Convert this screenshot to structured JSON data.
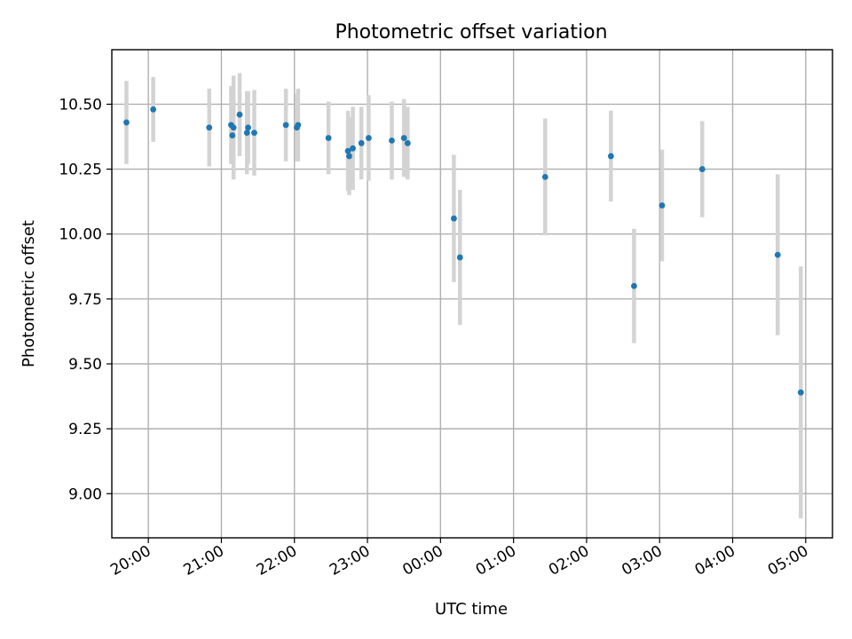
{
  "chart_data": {
    "type": "scatter",
    "title": "Photometric offset variation",
    "xlabel": "UTC time",
    "ylabel": "Photometric offset",
    "grid": true,
    "x_axis": {
      "kind": "time",
      "tick_labels": [
        "20:00",
        "21:00",
        "22:00",
        "23:00",
        "00:00",
        "01:00",
        "02:00",
        "03:00",
        "04:00",
        "05:00"
      ],
      "tick_times": [
        "20:00",
        "21:00",
        "22:00",
        "23:00",
        "00:00",
        "01:00",
        "02:00",
        "03:00",
        "04:00",
        "05:00"
      ],
      "range": [
        "19:30",
        "05:22"
      ],
      "tick_label_rotation": "30 degrees"
    },
    "y_axis": {
      "range": [
        8.83,
        10.71
      ],
      "ticks": [
        9.0,
        9.25,
        9.5,
        9.75,
        10.0,
        10.25,
        10.5
      ],
      "tick_labels": [
        "9.00",
        "9.25",
        "9.50",
        "9.75",
        "10.00",
        "10.25",
        "10.50"
      ]
    },
    "colors": {
      "marker": "#1f77b4",
      "errorbar": "#d3d3d3",
      "grid": "#b0b0b0"
    },
    "series": [
      {
        "points": [
          {
            "t": "19:42",
            "y": 10.43,
            "err": 0.16
          },
          {
            "t": "20:04",
            "y": 10.48,
            "err": 0.125
          },
          {
            "t": "20:50",
            "y": 10.41,
            "err": 0.15
          },
          {
            "t": "21:08",
            "y": 10.42,
            "err": 0.15
          },
          {
            "t": "21:09",
            "y": 10.38,
            "err": 0.1
          },
          {
            "t": "21:10",
            "y": 10.41,
            "err": 0.2
          },
          {
            "t": "21:15",
            "y": 10.46,
            "err": 0.16
          },
          {
            "t": "21:21",
            "y": 10.39,
            "err": 0.16
          },
          {
            "t": "21:22",
            "y": 10.41,
            "err": 0.14
          },
          {
            "t": "21:27",
            "y": 10.39,
            "err": 0.165
          },
          {
            "t": "21:53",
            "y": 10.42,
            "err": 0.14
          },
          {
            "t": "22:02",
            "y": 10.41,
            "err": 0.13
          },
          {
            "t": "22:03",
            "y": 10.42,
            "err": 0.14
          },
          {
            "t": "22:28",
            "y": 10.37,
            "err": 0.14
          },
          {
            "t": "22:44",
            "y": 10.32,
            "err": 0.155
          },
          {
            "t": "22:45",
            "y": 10.3,
            "err": 0.15
          },
          {
            "t": "22:48",
            "y": 10.33,
            "err": 0.16
          },
          {
            "t": "22:55",
            "y": 10.35,
            "err": 0.14
          },
          {
            "t": "23:01",
            "y": 10.37,
            "err": 0.165
          },
          {
            "t": "23:20",
            "y": 10.36,
            "err": 0.15
          },
          {
            "t": "23:30",
            "y": 10.37,
            "err": 0.15
          },
          {
            "t": "23:33",
            "y": 10.35,
            "err": 0.14
          },
          {
            "t": "00:11",
            "y": 10.06,
            "err": 0.245
          },
          {
            "t": "00:16",
            "y": 9.91,
            "err": 0.26
          },
          {
            "t": "01:26",
            "y": 10.22,
            "err": 0.225
          },
          {
            "t": "02:20",
            "y": 10.3,
            "err": 0.175
          },
          {
            "t": "02:39",
            "y": 9.8,
            "err": 0.22
          },
          {
            "t": "03:02",
            "y": 10.11,
            "err": 0.215
          },
          {
            "t": "03:35",
            "y": 10.25,
            "err": 0.185
          },
          {
            "t": "04:37",
            "y": 9.92,
            "err": 0.31
          },
          {
            "t": "04:56",
            "y": 9.39,
            "err": 0.485
          }
        ]
      }
    ]
  }
}
